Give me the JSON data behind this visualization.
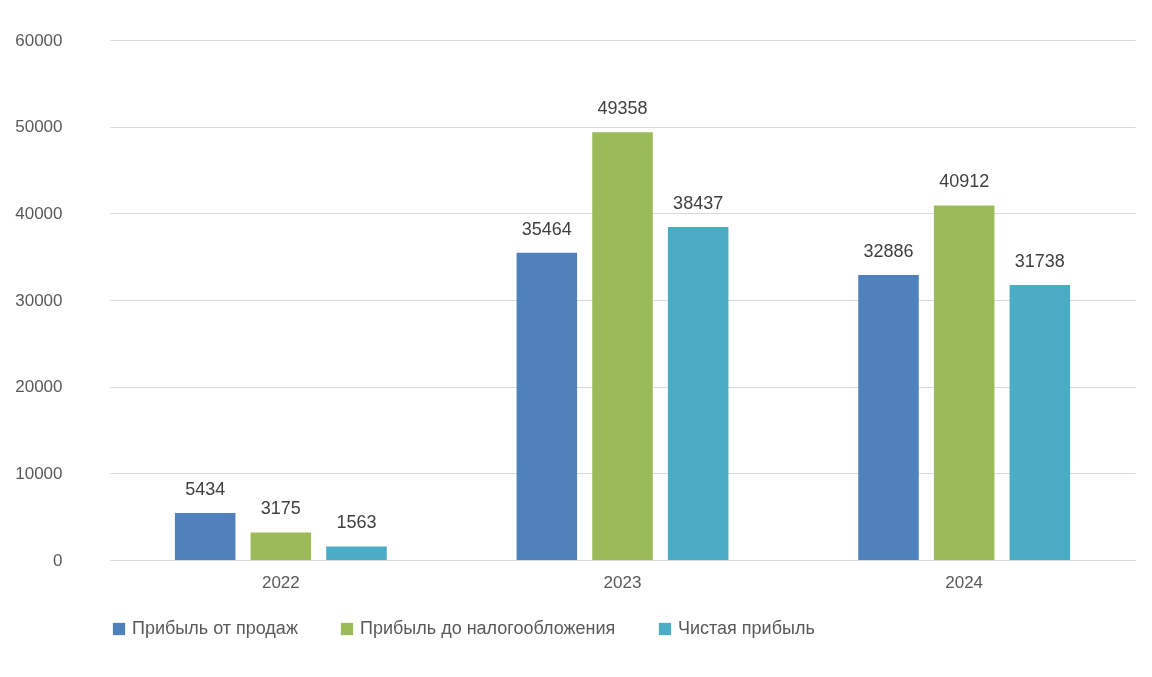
{
  "chart_data": {
    "type": "bar",
    "categories": [
      "2022",
      "2023",
      "2024"
    ],
    "series": [
      {
        "name": "Прибыль от продаж",
        "color": "#4f81bd",
        "values": [
          5434,
          35464,
          32886
        ]
      },
      {
        "name": "Прибыль до налогообложения",
        "color": "#9bbb59",
        "values": [
          3175,
          49358,
          40912
        ]
      },
      {
        "name": "Чистая прибыль",
        "color": "#4bacc6",
        "values": [
          1563,
          38437,
          31738
        ]
      }
    ],
    "ylim": [
      0,
      60000
    ],
    "yticks": [
      0,
      10000,
      20000,
      30000,
      40000,
      50000,
      60000
    ],
    "grid": "y",
    "legend": "bottom",
    "data_labels": true
  }
}
